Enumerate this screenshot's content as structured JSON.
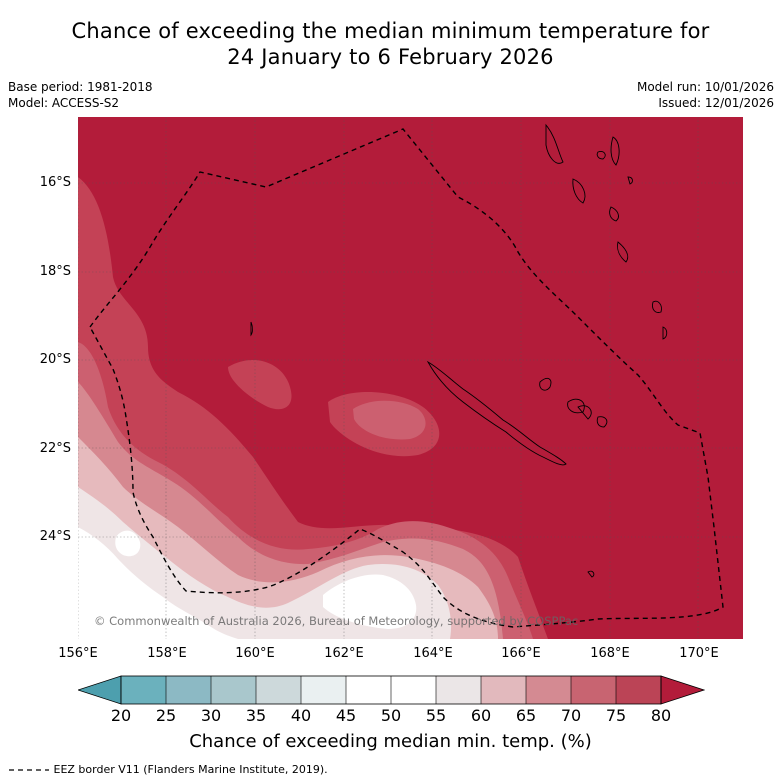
{
  "title": {
    "line1": "Chance of exceeding the median minimum temperature for",
    "line2": "24 January to 6 February 2026"
  },
  "meta": {
    "base_period": "Base period: 1981-2018",
    "model": "Model: ACCESS-S2",
    "model_run": "Model run: 10/01/2026",
    "issued": "Issued: 12/01/2026"
  },
  "map": {
    "lat_labels": [
      "16°S",
      "18°S",
      "20°S",
      "22°S",
      "24°S"
    ],
    "lon_labels": [
      "156°E",
      "158°E",
      "160°E",
      "162°E",
      "164°E",
      "166°E",
      "168°E",
      "170°E"
    ],
    "copyright": "© Commonwealth of Australia 2026, Bureau of Meteorology, supported by COSPPac",
    "colors": {
      "c80": "#b31c3a",
      "c75": "#c44256",
      "c70": "#cc6070",
      "c65": "#d68890",
      "c60": "#e6babd",
      "c55": "#efe5e6",
      "c50": "#ffffff",
      "c45": "#ffffff"
    }
  },
  "colorbar": {
    "title": "Chance of exceeding median min. temp. (%)",
    "ticks": [
      "20",
      "25",
      "30",
      "35",
      "40",
      "45",
      "50",
      "55",
      "60",
      "65",
      "70",
      "75",
      "80"
    ],
    "colors": [
      "#4d9fae",
      "#6bb1bd",
      "#8cb9c4",
      "#a9c7cc",
      "#cdd9db",
      "#eaf0f1",
      "#ffffff",
      "#ffffff",
      "#ebe6e7",
      "#e2b9bd",
      "#d48a92",
      "#c86471",
      "#bb4456",
      "#b31c3a"
    ]
  },
  "legend": {
    "text": "EEZ border V11 (Flanders Marine Institute, 2019)."
  }
}
